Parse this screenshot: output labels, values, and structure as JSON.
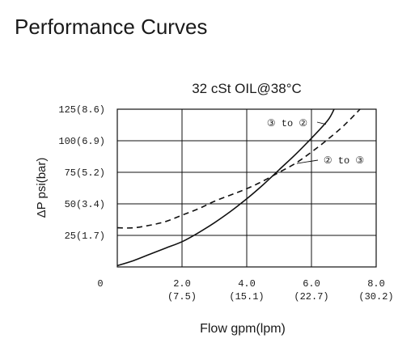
{
  "header": {
    "title": "Performance Curves"
  },
  "chart_data": {
    "type": "line",
    "title": "32 cSt OIL@38°C",
    "xlabel": "Flow gpm(lpm)",
    "ylabel": "ΔP psi(bar)",
    "xlim": [
      0,
      8
    ],
    "ylim": [
      0,
      125
    ],
    "x_ticks": [
      {
        "value": 2,
        "label": "2.0",
        "sublabel": "(7.5)"
      },
      {
        "value": 4,
        "label": "4.0",
        "sublabel": "(15.1)"
      },
      {
        "value": 6,
        "label": "6.0",
        "sublabel": "(22.7)"
      },
      {
        "value": 8,
        "label": "8.0",
        "sublabel": "(30.2)"
      }
    ],
    "y_ticks": [
      {
        "value": 25,
        "label": "25(1.7)"
      },
      {
        "value": 50,
        "label": "50(3.4)"
      },
      {
        "value": 75,
        "label": "75(5.2)"
      },
      {
        "value": 100,
        "label": "100(6.9)"
      },
      {
        "value": 125,
        "label": "125(8.6)"
      }
    ],
    "origin_label": "0",
    "grid": true,
    "series": [
      {
        "name": "③ to ②",
        "style": "solid",
        "color": "#111111",
        "x": [
          0,
          0.5,
          1,
          1.5,
          2,
          2.5,
          3,
          3.5,
          4,
          4.5,
          5,
          5.5,
          6,
          6.5,
          6.7
        ],
        "y": [
          1,
          5,
          10,
          15,
          20,
          27,
          35,
          44,
          54,
          65,
          77,
          89,
          102,
          116,
          125
        ]
      },
      {
        "name": "② to ③",
        "style": "dashed",
        "color": "#111111",
        "x": [
          0,
          0.5,
          1,
          1.5,
          2,
          2.5,
          3,
          3.5,
          4,
          4.5,
          5,
          5.5,
          6,
          6.5,
          7,
          7.5
        ],
        "y": [
          31,
          31,
          33,
          36,
          41,
          46,
          52,
          57,
          62,
          68,
          75,
          82,
          91,
          101,
          112,
          125
        ]
      }
    ],
    "annotations": [
      {
        "text": "③ to ②",
        "series": 0
      },
      {
        "text": "② to ③",
        "series": 1
      }
    ]
  }
}
